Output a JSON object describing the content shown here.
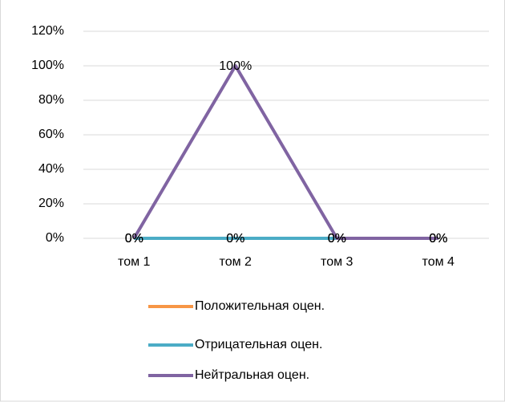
{
  "chart_data": {
    "type": "line",
    "categories": [
      "том 1",
      "том 2",
      "том 3",
      "том 4"
    ],
    "series": [
      {
        "name": "Положительная оцен.",
        "color": "#f79646",
        "values": [
          0,
          0,
          0,
          0
        ],
        "value_labels": [
          "0%",
          "0%",
          "0%",
          "0%"
        ]
      },
      {
        "name": "Отрицательная оцен.",
        "color": "#4bacc6",
        "values": [
          0,
          0,
          0,
          0
        ],
        "value_labels": [
          "0%",
          "0%",
          "0%",
          "0%"
        ]
      },
      {
        "name": "Нейтральная оцен.",
        "color": "#8064a2",
        "values": [
          0,
          100,
          0,
          0
        ],
        "value_labels": [
          "0%",
          "100%",
          "0%",
          "0%"
        ]
      }
    ],
    "ylim": [
      0,
      120
    ],
    "yticks": [
      {
        "value": 0,
        "label": "0%"
      },
      {
        "value": 20,
        "label": "20%"
      },
      {
        "value": 40,
        "label": "40%"
      },
      {
        "value": 60,
        "label": "60%"
      },
      {
        "value": 80,
        "label": "80%"
      },
      {
        "value": 100,
        "label": "100%"
      },
      {
        "value": 120,
        "label": "120%"
      }
    ],
    "grid": true,
    "legend": "bottom"
  }
}
